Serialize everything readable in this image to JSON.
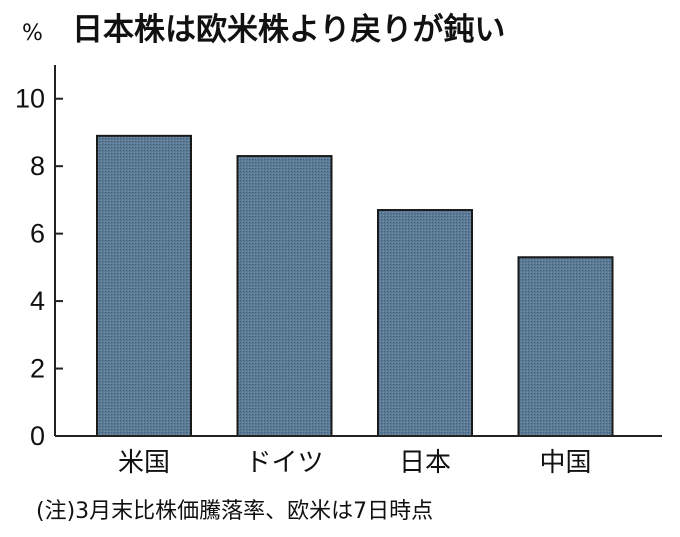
{
  "chart_data": {
    "type": "bar",
    "title": "日本株は欧米株より戻りが鈍い",
    "ylabel": "%",
    "xlabel": "",
    "categories": [
      "米国",
      "ドイツ",
      "日本",
      "中国"
    ],
    "values": [
      8.9,
      8.3,
      6.7,
      5.3
    ],
    "ylim": [
      0,
      11
    ],
    "yticks": [
      "0",
      "2",
      "4",
      "6",
      "8",
      "10"
    ],
    "grid": false,
    "legend": "none",
    "bar_color": "#5b7a96",
    "note": "(注)3月末比株価騰落率、欧米は7日時点"
  }
}
